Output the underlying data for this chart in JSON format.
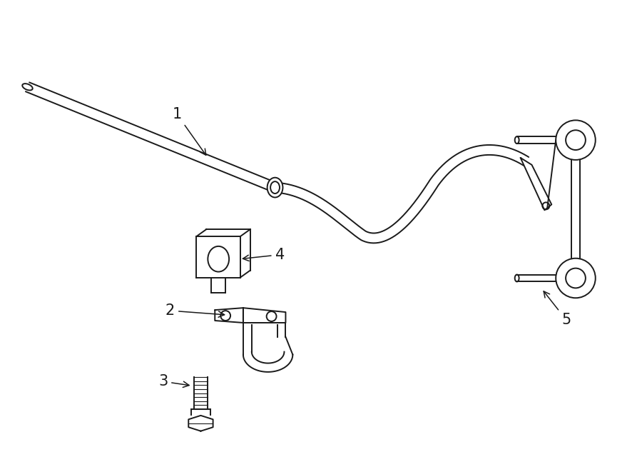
{
  "bg_color": "#ffffff",
  "line_color": "#1a1a1a",
  "lw": 1.4,
  "figsize": [
    9.0,
    6.61
  ],
  "dpi": 100
}
